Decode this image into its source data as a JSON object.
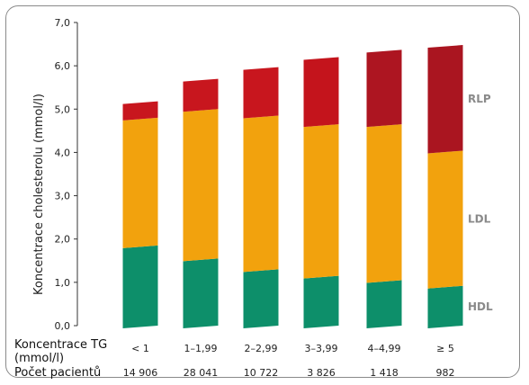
{
  "chart_data": {
    "type": "bar",
    "stacked": true,
    "ylabel": "Koncentrace cholesterolu (mmol/l)",
    "ylim": [
      0,
      7
    ],
    "yticks": [
      "0,0",
      "1,0",
      "2,0",
      "3,0",
      "4,0",
      "5,0",
      "6,0",
      "7,0"
    ],
    "categories": [
      "< 1",
      "1–1,99",
      "2–2,99",
      "3–3,99",
      "4–4,99",
      "≥ 5"
    ],
    "category_row_label": "Koncentrace TG",
    "category_row_label_unit": "(mmol/l)",
    "patients_row_label": "Počet pacientů",
    "patients": [
      "14 906",
      "28 041",
      "10 722",
      "3 826",
      "1 418",
      "982"
    ],
    "series": [
      {
        "name": "HDL",
        "color": "#0d8f6a",
        "values": [
          1.85,
          1.55,
          1.3,
          1.15,
          1.05,
          0.92
        ]
      },
      {
        "name": "LDL",
        "color": "#f2a20d",
        "values": [
          2.95,
          3.45,
          3.55,
          3.5,
          3.6,
          3.12
        ]
      },
      {
        "name": "RLP",
        "colors": [
          "#c8161e",
          "#c8161e",
          "#c8161e",
          "#c4141c",
          "#ad1521",
          "#aa1520"
        ],
        "values": [
          0.38,
          0.7,
          1.12,
          1.55,
          1.72,
          2.44
        ]
      }
    ],
    "grid": false
  }
}
